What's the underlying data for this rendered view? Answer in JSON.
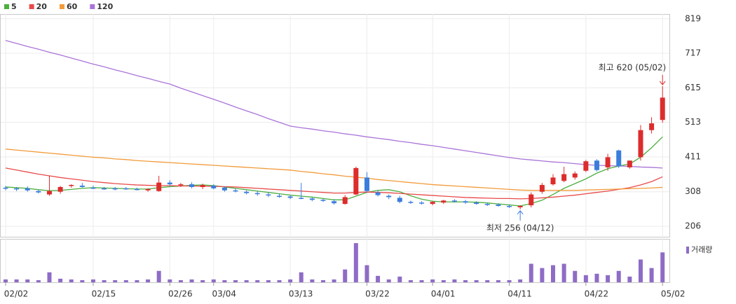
{
  "chart_data": {
    "type": "candlestick",
    "categories": [
      "02/02",
      null,
      null,
      null,
      null,
      null,
      null,
      null,
      "02/15",
      null,
      null,
      null,
      null,
      null,
      null,
      "02/26",
      null,
      null,
      null,
      "03/04",
      null,
      null,
      null,
      null,
      null,
      null,
      "03/13",
      null,
      null,
      null,
      null,
      null,
      null,
      "03/22",
      null,
      null,
      null,
      null,
      null,
      "04/01",
      null,
      null,
      null,
      null,
      null,
      null,
      "04/11",
      null,
      null,
      null,
      null,
      null,
      null,
      "04/22",
      null,
      null,
      null,
      null,
      null,
      null,
      "05/02"
    ],
    "open": [
      320,
      318,
      318,
      310,
      300,
      308,
      325,
      326,
      320,
      318,
      318,
      318,
      316,
      312,
      310,
      335,
      328,
      330,
      322,
      326,
      320,
      312,
      308,
      304,
      300,
      296,
      294,
      290,
      288,
      284,
      280,
      272,
      300,
      350,
      306,
      296,
      290,
      278,
      276,
      272,
      276,
      282,
      280,
      276,
      272,
      270,
      266,
      262,
      268,
      308,
      330,
      340,
      350,
      370,
      400,
      380,
      430,
      380,
      410,
      490,
      520
    ],
    "high": [
      325,
      322,
      324,
      314,
      355,
      325,
      330,
      334,
      326,
      322,
      322,
      322,
      320,
      318,
      355,
      342,
      334,
      336,
      332,
      330,
      324,
      318,
      312,
      310,
      306,
      302,
      298,
      334,
      292,
      288,
      286,
      298,
      382,
      366,
      312,
      300,
      296,
      282,
      280,
      280,
      284,
      286,
      284,
      280,
      276,
      274,
      270,
      268,
      306,
      334,
      360,
      382,
      368,
      402,
      404,
      420,
      432,
      400,
      505,
      528,
      620
    ],
    "low": [
      312,
      310,
      308,
      303,
      296,
      302,
      320,
      320,
      316,
      314,
      312,
      314,
      312,
      308,
      308,
      325,
      322,
      318,
      316,
      315,
      308,
      306,
      300,
      296,
      292,
      290,
      286,
      286,
      280,
      278,
      270,
      270,
      298,
      306,
      294,
      286,
      274,
      272,
      270,
      268,
      272,
      276,
      272,
      270,
      266,
      264,
      260,
      256,
      262,
      302,
      326,
      336,
      344,
      366,
      368,
      370,
      378,
      376,
      400,
      480,
      512
    ],
    "close": [
      318,
      315,
      312,
      306,
      310,
      322,
      328,
      322,
      318,
      316,
      315,
      316,
      314,
      316,
      335,
      330,
      330,
      322,
      328,
      318,
      312,
      310,
      304,
      302,
      298,
      294,
      290,
      288,
      284,
      282,
      274,
      292,
      378,
      310,
      298,
      292,
      278,
      276,
      274,
      278,
      282,
      280,
      276,
      272,
      270,
      266,
      264,
      266,
      300,
      328,
      350,
      360,
      362,
      398,
      372,
      410,
      383,
      400,
      490,
      510,
      586
    ],
    "ylim": [
      175,
      833
    ],
    "yticks": [
      206,
      308,
      411,
      513,
      615,
      717,
      819
    ],
    "series": [
      {
        "name": "5",
        "color": "#4caf3f",
        "values": [
          322,
          320,
          318,
          314,
          311,
          312,
          315,
          318,
          320,
          319,
          318,
          317,
          316,
          316,
          320,
          323,
          325,
          327,
          328,
          326,
          322,
          318,
          314,
          310,
          306,
          302,
          298,
          295,
          292,
          288,
          284,
          284,
          295,
          306,
          312,
          314,
          308,
          296,
          286,
          280,
          278,
          278,
          278,
          277,
          275,
          272,
          269,
          266,
          273,
          283,
          300,
          318,
          332,
          346,
          363,
          376,
          384,
          390,
          410,
          438,
          470
        ]
      },
      {
        "name": "20",
        "color": "#e84a4a",
        "values": [
          378,
          372,
          366,
          360,
          355,
          350,
          346,
          342,
          338,
          335,
          332,
          330,
          328,
          327,
          326,
          326,
          325,
          325,
          324,
          324,
          323,
          322,
          320,
          318,
          316,
          314,
          312,
          310,
          308,
          306,
          304,
          304,
          306,
          307,
          306,
          305,
          303,
          301,
          299,
          297,
          295,
          293,
          291,
          290,
          289,
          288,
          288,
          287,
          288,
          290,
          292,
          295,
          298,
          302,
          306,
          310,
          315,
          320,
          328,
          338,
          352
        ]
      },
      {
        "name": "60",
        "color": "#f29b3a",
        "values": [
          434,
          431,
          428,
          425,
          422,
          419,
          416,
          413,
          410,
          408,
          405,
          403,
          400,
          398,
          396,
          394,
          392,
          390,
          388,
          386,
          384,
          382,
          380,
          378,
          376,
          374,
          372,
          368,
          365,
          361,
          358,
          354,
          351,
          348,
          344,
          341,
          338,
          335,
          332,
          329,
          327,
          325,
          323,
          321,
          319,
          317,
          315,
          313,
          312,
          312,
          312,
          312,
          312,
          313,
          314,
          315,
          316,
          317,
          318,
          319,
          321
        ]
      },
      {
        "name": "120",
        "color": "#a974d8",
        "values": [
          755,
          746,
          737,
          729,
          720,
          712,
          703,
          694,
          685,
          677,
          668,
          660,
          651,
          643,
          634,
          626,
          614,
          603,
          592,
          581,
          570,
          558,
          547,
          536,
          524,
          513,
          502,
          497,
          493,
          488,
          484,
          479,
          475,
          470,
          466,
          462,
          457,
          453,
          448,
          444,
          439,
          434,
          429,
          424,
          419,
          414,
          409,
          405,
          402,
          399,
          396,
          394,
          391,
          388,
          386,
          385,
          384,
          383,
          381,
          380,
          378
        ]
      }
    ],
    "up_color": "#dd2c2c",
    "down_color": "#3b7ddd",
    "volume_name": "거래량",
    "volume_color": "#8e6cc6",
    "volume": [
      4,
      4,
      4,
      3,
      14,
      5,
      4,
      3,
      4,
      3,
      3,
      3,
      3,
      4,
      16,
      4,
      3,
      4,
      3,
      4,
      3,
      3,
      3,
      3,
      3,
      3,
      4,
      14,
      4,
      3,
      4,
      18,
      55,
      24,
      9,
      4,
      8,
      3,
      3,
      4,
      3,
      4,
      3,
      3,
      3,
      3,
      3,
      4,
      26,
      20,
      24,
      26,
      16,
      10,
      12,
      10,
      16,
      8,
      32,
      20,
      42
    ],
    "volume_ylim": [
      0,
      60
    ],
    "annotations": [
      {
        "text": "최고 620 (05/02)",
        "color": "#dd2c2c"
      },
      {
        "text": "최저 256 (04/12)",
        "color": "#3b7ddd"
      }
    ],
    "grid": true
  }
}
